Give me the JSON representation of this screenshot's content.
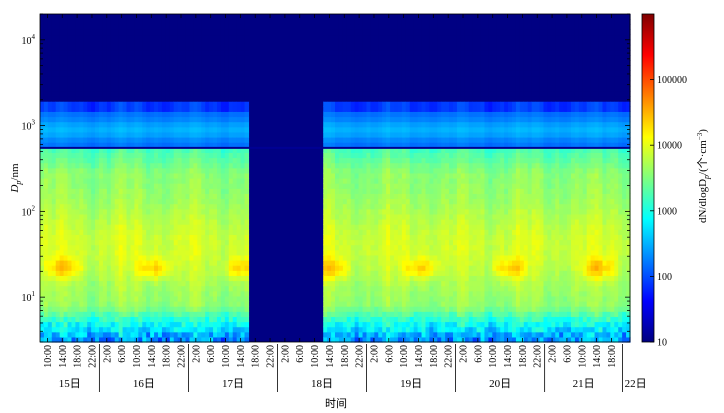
{
  "chart_data": {
    "type": "heatmap",
    "title": "",
    "xlabel": "时间",
    "ylabel_main": "D",
    "ylabel_sub": "p",
    "ylabel_unit": "/nm",
    "ylim": [
      3,
      20000
    ],
    "y_scale": "log",
    "y_ticks": [
      {
        "value": 10,
        "base": "10",
        "exp": "1"
      },
      {
        "value": 100,
        "base": "10",
        "exp": "2"
      },
      {
        "value": 1000,
        "base": "10",
        "exp": "3"
      },
      {
        "value": 10000,
        "base": "10",
        "exp": "4"
      }
    ],
    "x_time_ticks": [
      {
        "hour": 10,
        "label": "10:00"
      },
      {
        "hour": 14,
        "label": "14:00"
      },
      {
        "hour": 18,
        "label": "18:00"
      },
      {
        "hour": 22,
        "label": "22:00"
      },
      {
        "hour": 26,
        "label": "2:00"
      },
      {
        "hour": 30,
        "label": "6:00"
      },
      {
        "hour": 34,
        "label": "10:00"
      },
      {
        "hour": 38,
        "label": "14:00"
      },
      {
        "hour": 42,
        "label": "18:00"
      },
      {
        "hour": 46,
        "label": "22:00"
      },
      {
        "hour": 50,
        "label": "2:00"
      },
      {
        "hour": 54,
        "label": "6:00"
      },
      {
        "hour": 58,
        "label": "10:00"
      },
      {
        "hour": 62,
        "label": "14:00"
      },
      {
        "hour": 66,
        "label": "18:00"
      },
      {
        "hour": 70,
        "label": "22:00"
      },
      {
        "hour": 74,
        "label": "2:00"
      },
      {
        "hour": 78,
        "label": "6:00"
      },
      {
        "hour": 82,
        "label": "10:00"
      },
      {
        "hour": 86,
        "label": "14:00"
      },
      {
        "hour": 90,
        "label": "18:00"
      },
      {
        "hour": 94,
        "label": "22:00"
      },
      {
        "hour": 98,
        "label": "2:00"
      },
      {
        "hour": 102,
        "label": "6:00"
      },
      {
        "hour": 106,
        "label": "10:00"
      },
      {
        "hour": 110,
        "label": "14:00"
      },
      {
        "hour": 114,
        "label": "18:00"
      },
      {
        "hour": 118,
        "label": "22:00"
      },
      {
        "hour": 122,
        "label": "2:00"
      },
      {
        "hour": 126,
        "label": "6:00"
      },
      {
        "hour": 130,
        "label": "10:00"
      },
      {
        "hour": 134,
        "label": "14:00"
      },
      {
        "hour": 138,
        "label": "18:00"
      },
      {
        "hour": 142,
        "label": "22:00"
      },
      {
        "hour": 146,
        "label": "2:00"
      },
      {
        "hour": 150,
        "label": "6:00"
      },
      {
        "hour": 154,
        "label": "10:00"
      },
      {
        "hour": 158,
        "label": "14:00"
      },
      {
        "hour": 162,
        "label": "18:00"
      }
    ],
    "x_range_hours": [
      8,
      167
    ],
    "days": [
      {
        "label": "15日",
        "start": 8,
        "end": 24
      },
      {
        "label": "16日",
        "start": 24,
        "end": 48
      },
      {
        "label": "17日",
        "start": 48,
        "end": 72
      },
      {
        "label": "18日",
        "start": 72,
        "end": 96
      },
      {
        "label": "19日",
        "start": 96,
        "end": 120
      },
      {
        "label": "20日",
        "start": 120,
        "end": 144
      },
      {
        "label": "21日",
        "start": 144,
        "end": 165
      },
      {
        "label": "22日",
        "start": 165,
        "end": 167
      }
    ],
    "data_gap_hours": [
      65,
      84
    ],
    "colorbar": {
      "label": "dN/dlogD",
      "label_sub": "p",
      "label_unit": "/(个·cm",
      "label_exp": "−3",
      "label_close": ")",
      "scale": "log",
      "range": [
        10,
        1000000
      ],
      "ticks": [
        {
          "value": 10,
          "label": "10"
        },
        {
          "value": 100,
          "label": "100"
        },
        {
          "value": 1000,
          "label": "1000"
        },
        {
          "value": 10000,
          "label": "10000"
        },
        {
          "value": 100000,
          "label": "100000"
        }
      ],
      "colormap": [
        "#00007f",
        "#0000ff",
        "#007fff",
        "#00ffff",
        "#7fff7f",
        "#ffff00",
        "#ff7f00",
        "#ff0000",
        "#7f0000"
      ]
    },
    "features": {
      "nucleation_band_diameter_nm": 22,
      "upper_size_boundary_nm": 550,
      "accumulation_mode_range_nm": [
        600,
        2000
      ]
    }
  }
}
